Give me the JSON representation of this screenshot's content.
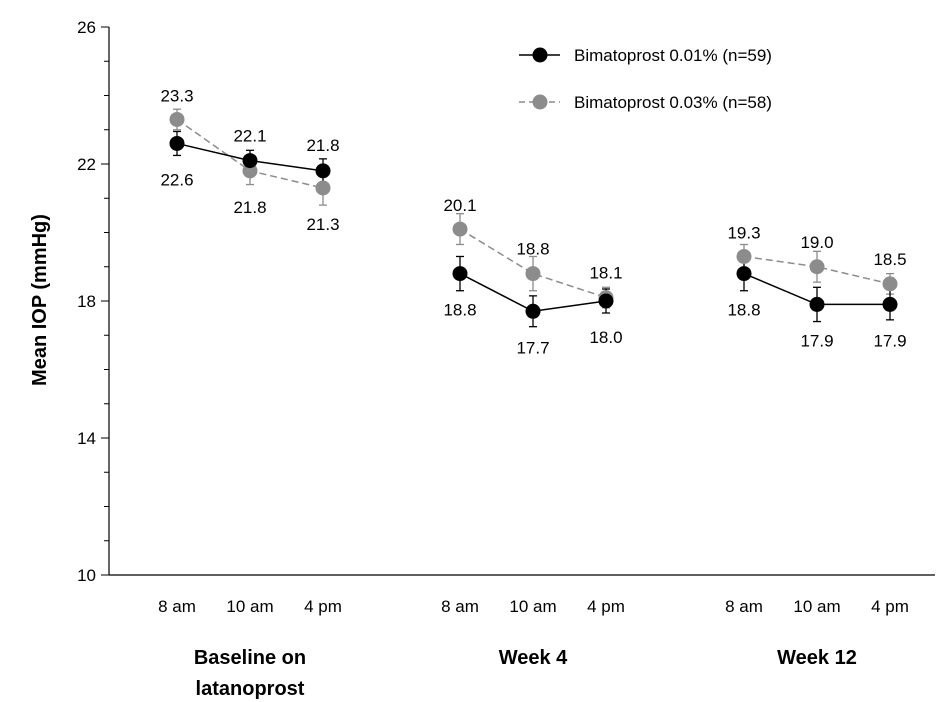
{
  "chart_data": {
    "type": "line",
    "title": "",
    "ylabel": "Mean IOP (mmHg)",
    "ylim": [
      10,
      26
    ],
    "yticks": [
      10,
      14,
      18,
      22,
      26
    ],
    "grid": false,
    "legend_position": "top-right",
    "groups": [
      {
        "label_lines": [
          "Baseline on",
          "latanoprost"
        ],
        "times": [
          "8 am",
          "10 am",
          "4 pm"
        ]
      },
      {
        "label_lines": [
          "Week 4"
        ],
        "times": [
          "8 am",
          "10 am",
          "4 pm"
        ]
      },
      {
        "label_lines": [
          "Week 12"
        ],
        "times": [
          "8 am",
          "10 am",
          "4 pm"
        ]
      }
    ],
    "series": [
      {
        "name": "Bimatoprost 0.01% (n=59)",
        "color": "#000000",
        "line_style": "solid",
        "values": [
          [
            22.6,
            22.1,
            21.8
          ],
          [
            18.8,
            17.7,
            18.0
          ],
          [
            18.8,
            17.9,
            17.9
          ]
        ],
        "labels": [
          [
            "22.6",
            "22.1",
            "21.8"
          ],
          [
            "18.8",
            "17.7",
            "18.0"
          ],
          [
            "18.8",
            "17.9",
            "17.9"
          ]
        ],
        "error": [
          [
            0.35,
            0.3,
            0.35
          ],
          [
            0.5,
            0.45,
            0.35
          ],
          [
            0.5,
            0.5,
            0.45
          ]
        ]
      },
      {
        "name": "Bimatoprost 0.03% (n=58)",
        "color": "#8c8c8c",
        "line_style": "dashed",
        "values": [
          [
            23.3,
            21.8,
            21.3
          ],
          [
            20.1,
            18.8,
            18.1
          ],
          [
            19.3,
            19.0,
            18.5
          ]
        ],
        "labels": [
          [
            "23.3",
            "21.8",
            "21.3"
          ],
          [
            "20.1",
            "18.8",
            "18.1"
          ],
          [
            "19.3",
            "19.0",
            "18.5"
          ]
        ],
        "error": [
          [
            0.3,
            0.4,
            0.5
          ],
          [
            0.45,
            0.5,
            0.3
          ],
          [
            0.35,
            0.45,
            0.3
          ]
        ]
      }
    ]
  }
}
